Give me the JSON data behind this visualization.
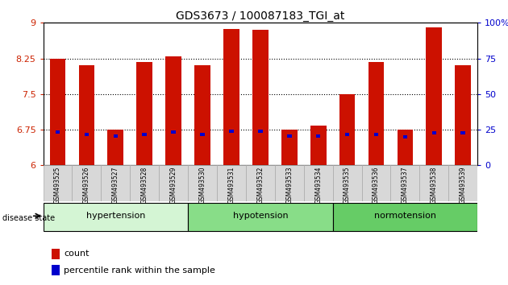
{
  "title": "GDS3673 / 100087183_TGI_at",
  "categories": [
    "GSM493525",
    "GSM493526",
    "GSM493527",
    "GSM493528",
    "GSM493529",
    "GSM493530",
    "GSM493531",
    "GSM493532",
    "GSM493533",
    "GSM493534",
    "GSM493535",
    "GSM493536",
    "GSM493537",
    "GSM493538",
    "GSM493539"
  ],
  "bar_values": [
    8.25,
    8.1,
    6.75,
    8.18,
    8.3,
    8.1,
    8.87,
    8.85,
    6.75,
    6.83,
    7.5,
    8.18,
    6.75,
    8.9,
    8.1
  ],
  "blue_values": [
    6.7,
    6.65,
    6.62,
    6.65,
    6.7,
    6.65,
    6.72,
    6.72,
    6.62,
    6.62,
    6.65,
    6.65,
    6.6,
    6.68,
    6.68
  ],
  "groups": [
    {
      "label": "hypertension",
      "start": 0,
      "end": 4,
      "color": "#d4f5d4"
    },
    {
      "label": "hypotension",
      "start": 5,
      "end": 9,
      "color": "#88dd88"
    },
    {
      "label": "normotension",
      "start": 10,
      "end": 14,
      "color": "#66cc66"
    }
  ],
  "ylim_left": [
    6,
    9
  ],
  "yticks_left": [
    6,
    6.75,
    7.5,
    8.25,
    9
  ],
  "ylim_right": [
    0,
    100
  ],
  "yticks_right": [
    0,
    25,
    50,
    75,
    100
  ],
  "bar_color": "#cc1100",
  "blue_color": "#0000cc",
  "bar_width": 0.55,
  "background_color": "#ffffff",
  "tick_label_color_left": "#cc2200",
  "tick_label_color_right": "#0000cc",
  "xlabel_area_color": "#d8d8d8",
  "disease_state_label": "disease state",
  "legend_count_label": "count",
  "legend_percentile_label": "percentile rank within the sample"
}
